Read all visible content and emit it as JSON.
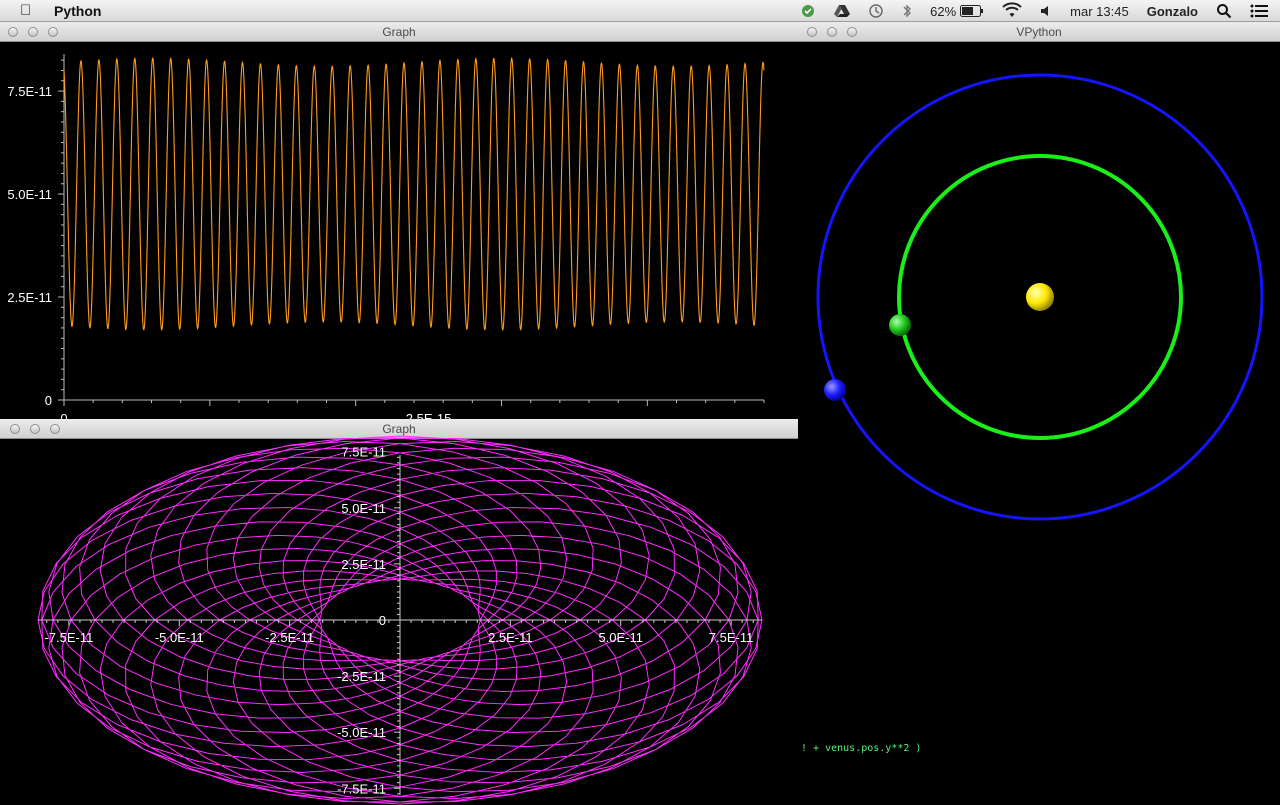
{
  "menubar": {
    "app_name": "Python",
    "battery": "62%",
    "clock": "mar 13:45",
    "user": "Gonzalo"
  },
  "windows": {
    "graph1": {
      "title": "Graph"
    },
    "graph2": {
      "title": "Graph"
    },
    "vpython": {
      "title": "VPython"
    }
  },
  "console": {
    "text": "! + venus.pos.y**2 )"
  },
  "colors": {
    "graph1_line": "#ff9a1e",
    "graph2_line": "#ff2bff",
    "orbit_outer": "#1414ff",
    "orbit_inner": "#18f018",
    "sun": "#ffe800",
    "planet_inner": "#1fc41f",
    "planet_outer": "#1a1aff"
  },
  "chart_data": [
    {
      "type": "line",
      "x_ticks": [
        "0",
        "2.5E-15"
      ],
      "y_ticks": [
        "0",
        "2.5E-11",
        "5.0E-11",
        "7.5E-11"
      ],
      "ylim": [
        0,
        8.4e-11
      ],
      "xlim": [
        0,
        4.8e-15
      ],
      "series": [
        {
          "min": 1.8e-11,
          "max": 8.2e-11,
          "cycles": 39
        }
      ]
    },
    {
      "type": "line",
      "x_ticks": [
        "-7.5E-11",
        "-5.0E-11",
        "-2.5E-11",
        "0",
        "2.5E-11",
        "5.0E-11",
        "7.5E-11"
      ],
      "y_ticks": [
        "7.5E-11",
        "5.0E-11",
        "2.5E-11",
        "0",
        "-2.5E-11",
        "-5.0E-11",
        "-7.5E-11"
      ],
      "xlim": [
        -8.2e-11,
        8.2e-11
      ],
      "ylim": [
        -7.8e-11,
        7.8e-11
      ],
      "series": [
        {
          "r_min": 1.8e-11,
          "r_max": 8.2e-11
        }
      ]
    }
  ]
}
